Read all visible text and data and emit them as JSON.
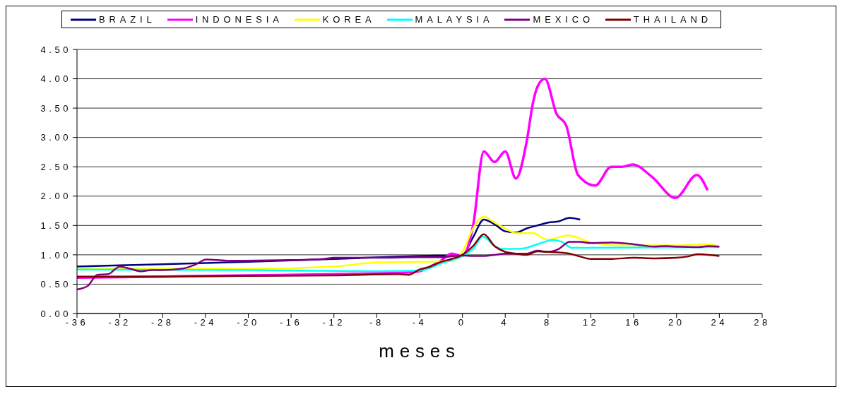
{
  "chart_data": {
    "type": "line",
    "xlabel": "meses",
    "xlim": [
      -36,
      28
    ],
    "xticks": [
      -36,
      -32,
      -28,
      -24,
      -20,
      -16,
      -12,
      -8,
      -4,
      0,
      4,
      8,
      12,
      16,
      20,
      24,
      28
    ],
    "ylim": [
      0,
      4.5
    ],
    "yticks": [
      {
        "value": 0,
        "label": "0.00"
      },
      {
        "value": 0.5,
        "label": "0.50"
      },
      {
        "value": 1,
        "label": "1.00"
      },
      {
        "value": 1.5,
        "label": "1.50"
      },
      {
        "value": 2,
        "label": "2.00"
      },
      {
        "value": 2.5,
        "label": "2.50"
      },
      {
        "value": 3,
        "label": "3.00"
      },
      {
        "value": 3.5,
        "label": "3.50"
      },
      {
        "value": 4,
        "label": "4.00"
      },
      {
        "value": 4.5,
        "label": "4.50"
      }
    ],
    "grid": "y",
    "legend": "top",
    "marker": "none",
    "line_style": "solid",
    "series": [
      {
        "name": "BRAZIL",
        "color": "#000080",
        "x": [
          -36,
          -28,
          -20,
          -12,
          -4,
          0,
          1,
          2,
          3,
          4,
          5,
          6,
          7,
          8,
          9,
          10,
          11
        ],
        "values": [
          0.8,
          0.84,
          0.88,
          0.93,
          0.98,
          1.0,
          1.3,
          1.6,
          1.52,
          1.4,
          1.38,
          1.45,
          1.5,
          1.55,
          1.57,
          1.63,
          1.6
        ]
      },
      {
        "name": "INDONESIA",
        "color": "#ff00ff",
        "x": [
          -36,
          -28,
          -20,
          -12,
          -5,
          -4,
          -3,
          -2,
          -1,
          0,
          1,
          2,
          3,
          4,
          5,
          6,
          6.6,
          7,
          7.7,
          8.8,
          9.7,
          10.8,
          12.4,
          13.9,
          14.9,
          15.9,
          17.7,
          19.9,
          21.9,
          22.9
        ],
        "values": [
          0.61,
          0.63,
          0.65,
          0.67,
          0.7,
          0.72,
          0.8,
          0.9,
          1.02,
          0.98,
          1.5,
          2.76,
          2.58,
          2.76,
          2.3,
          2.93,
          3.6,
          3.86,
          4.0,
          3.4,
          3.2,
          2.36,
          2.18,
          2.5,
          2.5,
          2.54,
          2.33,
          1.97,
          2.36,
          2.1
        ]
      },
      {
        "name": "KOREA",
        "color": "#ffff00",
        "x": [
          -36,
          -20,
          -12,
          -8,
          -4,
          -1,
          0,
          1,
          2,
          3,
          4,
          5,
          6.6,
          7.9,
          9.9,
          11.9,
          15,
          20,
          23,
          24
        ],
        "values": [
          0.77,
          0.76,
          0.8,
          0.87,
          0.88,
          0.9,
          1.05,
          1.45,
          1.65,
          1.55,
          1.45,
          1.37,
          1.37,
          1.26,
          1.33,
          1.22,
          1.16,
          1.16,
          1.18,
          1.14
        ]
      },
      {
        "name": "MALAYSIA",
        "color": "#00ffff",
        "x": [
          -36,
          -20,
          -8,
          -4,
          -2,
          1,
          1.9,
          3,
          3.7,
          5,
          6,
          7,
          8.5,
          9.3,
          10.2,
          11,
          24
        ],
        "values": [
          0.75,
          0.74,
          0.72,
          0.73,
          0.85,
          1.1,
          1.31,
          1.15,
          1.1,
          1.1,
          1.12,
          1.18,
          1.25,
          1.22,
          1.12,
          1.12,
          1.13
        ]
      },
      {
        "name": "MEXICO",
        "color": "#800080",
        "x": [
          -36,
          -35,
          -34.1,
          -33.1,
          -32,
          -31,
          -30,
          -29,
          -28,
          -26,
          -25,
          -23.9,
          -22,
          -20.4,
          -16,
          -13,
          -12,
          -8,
          -4,
          -2,
          0,
          1,
          2,
          3,
          4,
          5,
          6,
          7,
          8,
          9,
          10,
          11,
          12,
          14,
          16,
          18,
          19,
          20,
          22,
          23,
          24
        ],
        "values": [
          0.41,
          0.47,
          0.66,
          0.67,
          0.8,
          0.76,
          0.72,
          0.74,
          0.74,
          0.77,
          0.83,
          0.92,
          0.9,
          0.9,
          0.91,
          0.93,
          0.95,
          0.95,
          0.96,
          0.96,
          0.99,
          0.98,
          0.98,
          1.0,
          1.02,
          1.02,
          1.02,
          1.07,
          1.05,
          1.1,
          1.22,
          1.22,
          1.2,
          1.21,
          1.18,
          1.14,
          1.15,
          1.14,
          1.13,
          1.15,
          1.14
        ]
      },
      {
        "name": "THAILAND",
        "color": "#800000",
        "x": [
          -36,
          -28,
          -20,
          -12,
          -6,
          -5,
          -4,
          -3,
          -2,
          -1,
          0,
          1,
          2,
          3,
          4,
          5,
          6,
          7,
          8,
          9,
          10,
          11,
          12,
          14,
          16,
          18,
          20,
          21,
          22,
          23,
          24
        ],
        "values": [
          0.63,
          0.63,
          0.64,
          0.65,
          0.67,
          0.66,
          0.75,
          0.8,
          0.88,
          0.93,
          1.0,
          1.15,
          1.35,
          1.15,
          1.05,
          1.02,
          1.0,
          1.06,
          1.05,
          1.04,
          1.02,
          0.97,
          0.93,
          0.93,
          0.95,
          0.94,
          0.95,
          0.97,
          1.01,
          1.0,
          0.98
        ]
      }
    ]
  }
}
